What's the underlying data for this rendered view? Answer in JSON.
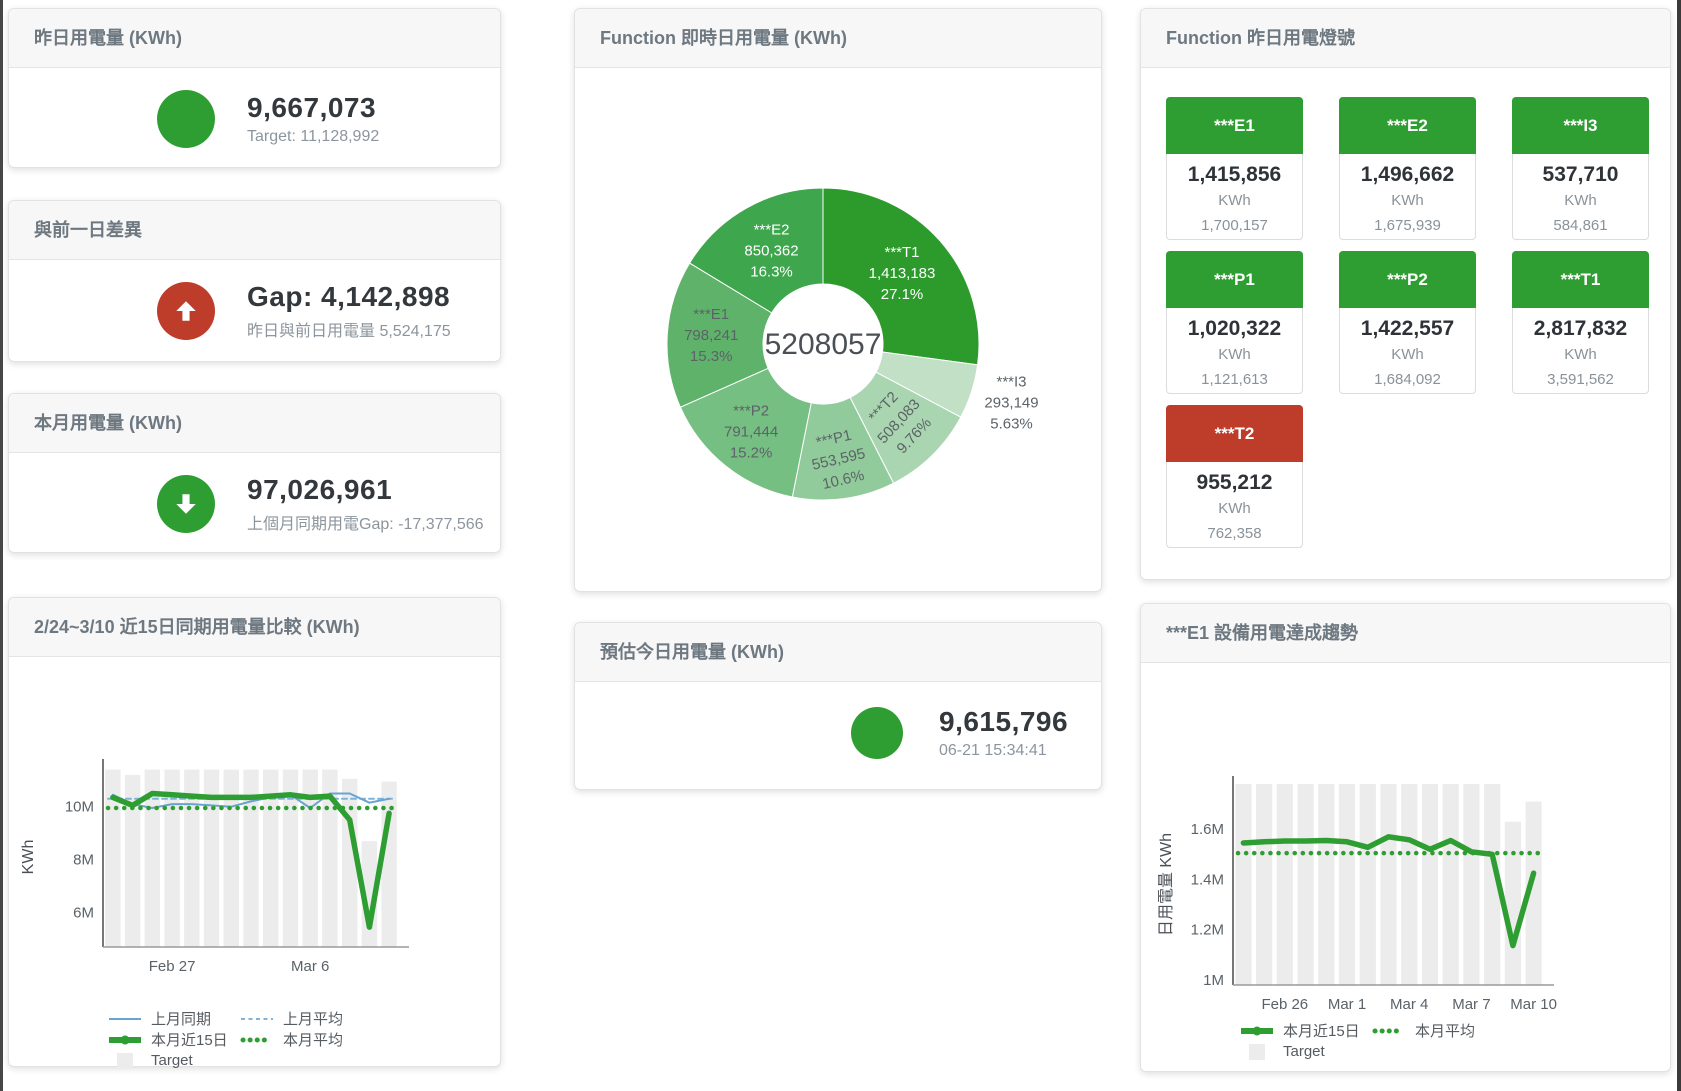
{
  "colors": {
    "green": "#2f9e32",
    "red": "#bd3c2a",
    "bar_gray": "#ececec",
    "blue_line": "#68a4cf",
    "blue_dash": "#7fb3da",
    "value_text": "#33383d",
    "sub_text": "#8c959d",
    "header_text": "#6e7881"
  },
  "cards": {
    "yesterday": {
      "title": "昨日用電量 (KWh)",
      "value": "9,667,073",
      "subtitle": "Target: 11,128,992",
      "indicator": "green-circle"
    },
    "gap": {
      "title": "與前一日差異",
      "value": "Gap: 4,142,898",
      "subtitle": "昨日與前日用電量 5,524,175",
      "indicator": "red-circle-up-arrow"
    },
    "month": {
      "title": "本月用電量 (KWh)",
      "value": "97,026,961",
      "subtitle": "上個月同期用電Gap: -17,377,566",
      "indicator": "green-circle-down-arrow"
    },
    "donut_card": {
      "title": "Function 即時日用電量 (KWh)"
    },
    "tiles_card": {
      "title": "Function 昨日用電燈號",
      "unit": "KWh",
      "tiles": [
        {
          "label": "***E1",
          "value": "1,415,856",
          "unit": "KWh",
          "target": "1,700,157",
          "color": "#2f9e32"
        },
        {
          "label": "***E2",
          "value": "1,496,662",
          "unit": "KWh",
          "target": "1,675,939",
          "color": "#2f9e32"
        },
        {
          "label": "***I3",
          "value": "537,710",
          "unit": "KWh",
          "target": "584,861",
          "color": "#2f9e32"
        },
        {
          "label": "***P1",
          "value": "1,020,322",
          "unit": "KWh",
          "target": "1,121,613",
          "color": "#2f9e32"
        },
        {
          "label": "***P2",
          "value": "1,422,557",
          "unit": "KWh",
          "target": "1,684,092",
          "color": "#2f9e32"
        },
        {
          "label": "***T1",
          "value": "2,817,832",
          "unit": "KWh",
          "target": "3,591,562",
          "color": "#2f9e32"
        },
        {
          "label": "***T2",
          "value": "955,212",
          "unit": "KWh",
          "target": "762,358",
          "color": "#bd3c2a"
        }
      ]
    },
    "estimate": {
      "title": "預估今日用電量 (KWh)",
      "value": "9,615,796",
      "subtitle": "06-21 15:34:41",
      "indicator": "green-circle"
    },
    "compare_card": {
      "title": "2/24~3/10 近15日同期用電量比較 (KWh)"
    },
    "trend_card": {
      "title": "***E1 設備用電達成趨勢"
    }
  },
  "chart_data": [
    {
      "id": "donut",
      "type": "pie",
      "title": "Function 即時日用電量 (KWh)",
      "center_label": "5208057",
      "slices": [
        {
          "name": "***T1",
          "value": "1,413,183",
          "pct": "27.1%",
          "pct_num": 27.1,
          "color": "#2d9b2b",
          "label_color": "#ffffff",
          "label_pos": "inside",
          "label_r": 105
        },
        {
          "name": "***I3",
          "value": "293,149",
          "pct": "5.63%",
          "pct_num": 5.63,
          "color": "#c1e0c6",
          "label_color": "#5c6368",
          "label_pos": "outside"
        },
        {
          "name": "***T2",
          "value": "508,083",
          "pct": "9.76%",
          "pct_num": 9.76,
          "color": "#a9d6b0",
          "label_color": "#5c6368",
          "label_pos": "inside",
          "label_rotate": -47,
          "label_r": 110
        },
        {
          "name": "***P1",
          "value": "553,595",
          "pct": "10.6%",
          "pct_num": 10.6,
          "color": "#92cb9b",
          "label_color": "#5c6368",
          "label_pos": "inside",
          "label_rotate": -13,
          "label_r": 118
        },
        {
          "name": "***P2",
          "value": "791,444",
          "pct": "15.2%",
          "pct_num": 15.2,
          "color": "#76bf82",
          "label_color": "#5c6368",
          "label_pos": "inside",
          "label_r": 115
        },
        {
          "name": "***E1",
          "value": "798,241",
          "pct": "15.3%",
          "pct_num": 15.3,
          "color": "#5fb26a",
          "label_color": "#5c6368",
          "label_pos": "inside",
          "label_r": 112
        },
        {
          "name": "***E2",
          "value": "850,362",
          "pct": "16.3%",
          "pct_num": 16.3,
          "color": "#3ea64d",
          "label_color": "#ffffff",
          "label_pos": "inside",
          "label_r": 105
        }
      ]
    },
    {
      "id": "compare",
      "type": "line",
      "title": "2/24~3/10 近15日同期用電量比較 (KWh)",
      "ylabel": "KWh",
      "unit": "million KWh",
      "ylim": [
        4.7,
        11.5
      ],
      "yticks": [
        {
          "v": 6,
          "label": "6M"
        },
        {
          "v": 8,
          "label": "8M"
        },
        {
          "v": 10,
          "label": "10M"
        }
      ],
      "xticks": [
        {
          "i": 3,
          "label": "Feb 27"
        },
        {
          "i": 10,
          "label": "Mar 6"
        }
      ],
      "target_bars": [
        11.4,
        11.2,
        11.4,
        11.4,
        11.4,
        11.4,
        11.4,
        11.4,
        11.4,
        11.4,
        11.4,
        11.4,
        11.05,
        8.7,
        10.95
      ],
      "series": [
        {
          "name": "上月平均",
          "type": "avg",
          "style": "dashed",
          "color": "#7fb3da",
          "value": 10.3
        },
        {
          "name": "上月同期",
          "type": "line",
          "width": "thin",
          "color": "#68a4cf",
          "values": [
            10.45,
            10.1,
            9.95,
            10.1,
            10.1,
            10.05,
            10.0,
            10.2,
            10.35,
            10.45,
            9.95,
            10.5,
            10.5,
            10.15,
            10.3
          ]
        },
        {
          "name": "本月平均",
          "type": "avg",
          "style": "dotted",
          "color": "#2f9e32",
          "value": 9.95
        },
        {
          "name": "本月近15日",
          "type": "line",
          "width": "thick",
          "color": "#2f9e32",
          "values": [
            10.35,
            10.05,
            10.5,
            10.45,
            10.4,
            10.35,
            10.35,
            10.35,
            10.4,
            10.45,
            10.35,
            10.4,
            9.5,
            5.45,
            9.75
          ]
        }
      ],
      "legend_rows": [
        [
          {
            "marker": "line",
            "color": "#68a4cf",
            "label": "上月同期"
          },
          {
            "marker": "dashed",
            "color": "#7fb3da",
            "label": "上月平均"
          }
        ],
        [
          {
            "marker": "thick",
            "color": "#2f9e32",
            "label": "本月近15日"
          },
          {
            "marker": "dotted",
            "color": "#2f9e32",
            "label": "本月平均"
          }
        ],
        [
          {
            "marker": "box",
            "color": "#ececec",
            "label": "Target"
          }
        ]
      ]
    },
    {
      "id": "trend",
      "type": "line",
      "title": "***E1 設備用電達成趨勢",
      "ylabel": "日用電量 KWh",
      "unit": "million KWh",
      "ylim": [
        0.98,
        1.78
      ],
      "yticks": [
        {
          "v": 1,
          "label": "1M"
        },
        {
          "v": 1.2,
          "label": "1.2M"
        },
        {
          "v": 1.4,
          "label": "1.4M"
        },
        {
          "v": 1.6,
          "label": "1.6M"
        }
      ],
      "xticks": [
        {
          "i": 2,
          "label": "Feb 26"
        },
        {
          "i": 5,
          "label": "Mar 1"
        },
        {
          "i": 8,
          "label": "Mar 4"
        },
        {
          "i": 11,
          "label": "Mar 7"
        },
        {
          "i": 14,
          "label": "Mar 10"
        }
      ],
      "target_bars": [
        1.78,
        1.78,
        1.78,
        1.78,
        1.78,
        1.78,
        1.78,
        1.78,
        1.78,
        1.78,
        1.78,
        1.78,
        1.78,
        1.63,
        1.71
      ],
      "series": [
        {
          "name": "本月平均",
          "type": "avg",
          "style": "dotted",
          "color": "#2f9e32",
          "value": 1.505
        },
        {
          "name": "本月近15日",
          "type": "line",
          "width": "thick",
          "color": "#2f9e32",
          "values": [
            1.545,
            1.55,
            1.553,
            1.553,
            1.555,
            1.55,
            1.528,
            1.57,
            1.558,
            1.52,
            1.555,
            1.51,
            1.5,
            1.137,
            1.425
          ]
        }
      ],
      "legend_rows": [
        [
          {
            "marker": "thick",
            "color": "#2f9e32",
            "label": "本月近15日"
          },
          {
            "marker": "dotted",
            "color": "#2f9e32",
            "label": "本月平均"
          }
        ],
        [
          {
            "marker": "box",
            "color": "#ececec",
            "label": "Target"
          }
        ]
      ]
    }
  ]
}
